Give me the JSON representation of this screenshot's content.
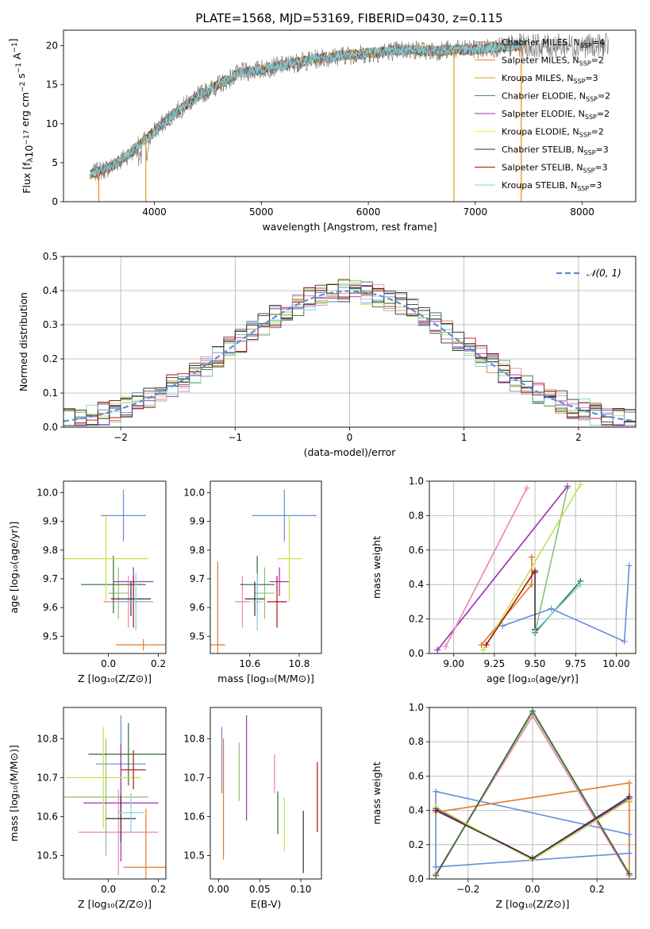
{
  "figure_title": "PLATE=1568, MJD=53169, FIBERID=0430, z=0.115",
  "model_colors": [
    "#7f7f7f",
    "#ff7f0e",
    "#d4a017",
    "#4d8f4d",
    "#9b30b0",
    "#e6f04a",
    "#333333",
    "#b01010",
    "#80d0e0"
  ],
  "series_colors": [
    "#6a8cde",
    "#e07a2a",
    "#8fbc7a",
    "#9b30b0",
    "#ee82b4",
    "#2e6b2e",
    "#c8e04a",
    "#333333",
    "#b01010",
    "#80d0e0"
  ],
  "chart_data": [
    {
      "type": "line",
      "title": "PLATE=1568, MJD=53169, FIBERID=0430, z=0.115",
      "xlabel": "wavelength [Angstrom, rest frame]",
      "ylabel": "Flux [f_λ 10^-17 erg cm^-2 s^-1 A^-1]",
      "xlim": [
        3150,
        8500
      ],
      "ylim": [
        0,
        22
      ],
      "xticks": [
        4000,
        5000,
        6000,
        7000,
        8000
      ],
      "yticks": [
        0,
        5,
        10,
        15,
        20
      ],
      "legend_position": "top-right",
      "legend": [
        {
          "label": "Chabrier MILES, N",
          "ssp": "=4"
        },
        {
          "label": "Salpeter MILES, N",
          "ssp": "=2"
        },
        {
          "label": "Kroupa MILES, N",
          "ssp": "=3"
        },
        {
          "label": "Chabrier ELODIE, N",
          "ssp": "=2"
        },
        {
          "label": "Salpeter ELODIE, N",
          "ssp": "=2"
        },
        {
          "label": "Kroupa ELODIE, N",
          "ssp": "=2"
        },
        {
          "label": "Chabrier STELIB, N",
          "ssp": "=3"
        },
        {
          "label": "Salpeter STELIB, N",
          "ssp": "=3"
        },
        {
          "label": "Kroupa STELIB, N",
          "ssp": "=3"
        }
      ],
      "continuum": {
        "x": [
          3400,
          3600,
          3800,
          4000,
          4200,
          4400,
          4600,
          4800,
          5000,
          5200,
          5400,
          5600,
          5800,
          6000,
          6200,
          6400,
          6600,
          6800,
          7000,
          7200,
          7400
        ],
        "y": [
          3.5,
          4.5,
          6.5,
          9.0,
          11.5,
          13.5,
          15.0,
          16.5,
          17.0,
          17.5,
          18.0,
          18.5,
          18.8,
          19.0,
          19.3,
          19.5,
          19.3,
          19.5,
          19.5,
          19.8,
          20.0
        ]
      },
      "flux_drops": [
        3480,
        3920,
        6800,
        7430
      ]
    },
    {
      "type": "line",
      "xlabel": "(data-model)/error",
      "ylabel": "Normed distribution",
      "xlim": [
        -2.5,
        2.5
      ],
      "ylim": [
        0,
        0.5
      ],
      "xticks": [
        -2,
        -1,
        0,
        1,
        2
      ],
      "yticks": [
        0.0,
        0.1,
        0.2,
        0.3,
        0.4,
        0.5
      ],
      "grid": true,
      "legend_position": "top-right",
      "legend": [
        "𝒩(0, 1)"
      ],
      "bin_width": 0.1,
      "reference_curve": "N(0,1) probability density"
    },
    {
      "type": "scatter",
      "xlabel": "Z [log10(Z/Z⊙)]",
      "ylabel": "age  [log10(age/yr)]",
      "xlim": [
        -0.18,
        0.23
      ],
      "ylim": [
        9.44,
        10.04
      ],
      "xticks": [
        0.0,
        0.2
      ],
      "yticks": [
        9.5,
        9.6,
        9.7,
        9.8,
        9.9,
        10.0
      ],
      "points": [
        {
          "x": 0.06,
          "y": 9.92,
          "xerr": 0.09,
          "yerr": 0.09
        },
        {
          "x": 0.14,
          "y": 9.47,
          "xerr": 0.11,
          "yerr": 0.02
        },
        {
          "x": 0.04,
          "y": 9.65,
          "xerr": 0.04,
          "yerr": 0.09
        },
        {
          "x": 0.1,
          "y": 9.69,
          "xerr": 0.08,
          "yerr": 0.05
        },
        {
          "x": 0.08,
          "y": 9.62,
          "xerr": 0.1,
          "yerr": 0.09
        },
        {
          "x": 0.02,
          "y": 9.68,
          "xerr": 0.13,
          "yerr": 0.1
        },
        {
          "x": -0.01,
          "y": 9.77,
          "xerr": 0.17,
          "yerr": 0.15
        },
        {
          "x": 0.09,
          "y": 9.63,
          "xerr": 0.08,
          "yerr": 0.06
        },
        {
          "x": 0.1,
          "y": 9.62,
          "xerr": 0.05,
          "yerr": 0.09
        },
        {
          "x": 0.11,
          "y": 9.62,
          "xerr": 0.06,
          "yerr": 0.1
        }
      ]
    },
    {
      "type": "scatter",
      "xlabel": "mass [log10(M/M⊙)]",
      "ylabel": "",
      "xlim": [
        10.44,
        10.89
      ],
      "ylim": [
        9.44,
        10.04
      ],
      "xticks": [
        10.6,
        10.8
      ],
      "yticks": [
        9.5,
        9.6,
        9.7,
        9.8,
        9.9,
        10.0
      ],
      "points": [
        {
          "x": 10.74,
          "y": 9.92,
          "xerr": 0.13,
          "yerr": 0.09
        },
        {
          "x": 10.47,
          "y": 9.47,
          "xerr": 0.03,
          "yerr": 0.29
        },
        {
          "x": 10.66,
          "y": 9.65,
          "xerr": 0.04,
          "yerr": 0.09
        },
        {
          "x": 10.72,
          "y": 9.69,
          "xerr": 0.04,
          "yerr": 0.05
        },
        {
          "x": 10.57,
          "y": 9.62,
          "xerr": 0.03,
          "yerr": 0.09
        },
        {
          "x": 10.63,
          "y": 9.68,
          "xerr": 0.07,
          "yerr": 0.1
        },
        {
          "x": 10.76,
          "y": 9.77,
          "xerr": 0.05,
          "yerr": 0.15
        },
        {
          "x": 10.62,
          "y": 9.63,
          "xerr": 0.04,
          "yerr": 0.06
        },
        {
          "x": 10.71,
          "y": 9.62,
          "xerr": 0.04,
          "yerr": 0.09
        },
        {
          "x": 10.63,
          "y": 9.62,
          "xerr": 0.02,
          "yerr": 0.1
        }
      ]
    },
    {
      "type": "line",
      "xlabel": "age  [log10(age/yr)]",
      "ylabel": "mass weight",
      "xlim": [
        8.85,
        10.12
      ],
      "ylim": [
        0,
        1
      ],
      "xticks": [
        9.0,
        9.25,
        9.5,
        9.75,
        10.0
      ],
      "yticks": [
        0.0,
        0.2,
        0.4,
        0.6,
        0.8,
        1.0
      ],
      "grid": true,
      "series": [
        {
          "x": [
            9.3,
            9.6,
            10.05,
            10.08
          ],
          "y": [
            0.16,
            0.26,
            0.07,
            0.51
          ]
        },
        {
          "x": [
            9.17,
            9.48,
            9.48
          ],
          "y": [
            0.05,
            0.4,
            0.56
          ]
        },
        {
          "x": [
            9.5,
            9.7
          ],
          "y": [
            0.12,
            0.96
          ]
        },
        {
          "x": [
            8.9,
            9.7
          ],
          "y": [
            0.02,
            0.97
          ]
        },
        {
          "x": [
            8.95,
            9.45
          ],
          "y": [
            0.04,
            0.96
          ]
        },
        {
          "x": [
            9.5,
            9.78
          ],
          "y": [
            0.12,
            0.42
          ]
        },
        {
          "x": [
            9.18,
            9.78
          ],
          "y": [
            0.02,
            0.98
          ]
        },
        {
          "x": [
            9.5,
            9.5
          ],
          "y": [
            0.14,
            0.47
          ]
        },
        {
          "x": [
            9.2,
            9.5
          ],
          "y": [
            0.05,
            0.48
          ]
        },
        {
          "x": [
            9.5,
            9.78
          ],
          "y": [
            0.13,
            0.4
          ]
        }
      ]
    },
    {
      "type": "scatter",
      "xlabel": "Z [log10(Z/Z⊙)]",
      "ylabel": "mass [log10(M/M⊙)]",
      "xlim": [
        -0.18,
        0.23
      ],
      "ylim": [
        10.44,
        10.88
      ],
      "xticks": [
        0.0,
        0.2
      ],
      "yticks": [
        10.5,
        10.6,
        10.7,
        10.8
      ],
      "points": [
        {
          "x": 0.05,
          "y": 10.735,
          "xerr": 0.1,
          "yerr": 0.125
        },
        {
          "x": 0.15,
          "y": 10.47,
          "xerr": 0.09,
          "yerr": 0.15
        },
        {
          "x": -0.01,
          "y": 10.65,
          "xerr": 0.17,
          "yerr": 0.15
        },
        {
          "x": 0.05,
          "y": 10.635,
          "xerr": 0.15,
          "yerr": 0.15
        },
        {
          "x": 0.04,
          "y": 10.56,
          "xerr": 0.16,
          "yerr": 0.11
        },
        {
          "x": 0.08,
          "y": 10.76,
          "xerr": 0.16,
          "yerr": 0.08
        },
        {
          "x": -0.02,
          "y": 10.7,
          "xerr": 0.15,
          "yerr": 0.13
        },
        {
          "x": 0.05,
          "y": 10.595,
          "xerr": 0.06,
          "yerr": 0.06
        },
        {
          "x": 0.1,
          "y": 10.72,
          "xerr": 0.05,
          "yerr": 0.05
        },
        {
          "x": 0.09,
          "y": 10.61,
          "xerr": 0.05,
          "yerr": 0.05
        }
      ]
    },
    {
      "type": "scatter",
      "xlabel": "E(B-V)",
      "ylabel": "",
      "xlim": [
        -0.01,
        0.125
      ],
      "ylim": [
        10.44,
        10.88
      ],
      "xticks": [
        0.0,
        0.05,
        0.1
      ],
      "yticks": [
        10.5,
        10.6,
        10.7,
        10.8
      ],
      "points": [
        {
          "x": 0.004,
          "y": 10.745,
          "yerr": 0.085
        },
        {
          "x": 0.006,
          "y": 10.645,
          "yerr": 0.155
        },
        {
          "x": 0.025,
          "y": 10.715,
          "yerr": 0.075
        },
        {
          "x": 0.034,
          "y": 10.725,
          "yerr": 0.135
        },
        {
          "x": 0.068,
          "y": 10.71,
          "yerr": 0.05
        },
        {
          "x": 0.072,
          "y": 10.61,
          "yerr": 0.055
        },
        {
          "x": 0.08,
          "y": 10.58,
          "yerr": 0.07
        },
        {
          "x": 0.103,
          "y": 10.535,
          "yerr": 0.08
        },
        {
          "x": 0.12,
          "y": 10.65,
          "yerr": 0.09
        }
      ]
    },
    {
      "type": "line",
      "xlabel": "Z [log10(Z/Z⊙)]",
      "ylabel": "mass weight",
      "xlim": [
        -0.32,
        0.32
      ],
      "ylim": [
        0,
        1
      ],
      "xticks": [
        -0.2,
        0.0,
        0.2
      ],
      "yticks": [
        0.0,
        0.2,
        0.4,
        0.6,
        0.8,
        1.0
      ],
      "grid": true,
      "series": [
        {
          "x": [
            -0.3,
            0.3,
            0.3,
            -0.3,
            -0.3
          ],
          "y": [
            0.07,
            0.15,
            0.26,
            0.51,
            0.07
          ]
        },
        {
          "x": [
            -0.3,
            0.3,
            0.3,
            0.3
          ],
          "y": [
            0.39,
            0.56,
            0.45,
            0.02
          ]
        },
        {
          "x": [
            -0.3,
            0.0,
            0.3
          ],
          "y": [
            0.02,
            0.97,
            0.03
          ]
        },
        {
          "x": [
            -0.3,
            0.0,
            0.3
          ],
          "y": [
            0.41,
            0.12,
            0.47
          ]
        },
        {
          "x": [
            -0.3,
            0.0,
            0.3
          ],
          "y": [
            0.03,
            0.95,
            0.02
          ]
        },
        {
          "x": [
            -0.3,
            0.0,
            0.3
          ],
          "y": [
            0.02,
            0.98,
            0.03
          ]
        },
        {
          "x": [
            -0.3,
            0.0,
            0.3
          ],
          "y": [
            0.42,
            0.11,
            0.46
          ]
        },
        {
          "x": [
            -0.3,
            0.0,
            0.3
          ],
          "y": [
            0.4,
            0.12,
            0.48
          ]
        }
      ]
    }
  ]
}
